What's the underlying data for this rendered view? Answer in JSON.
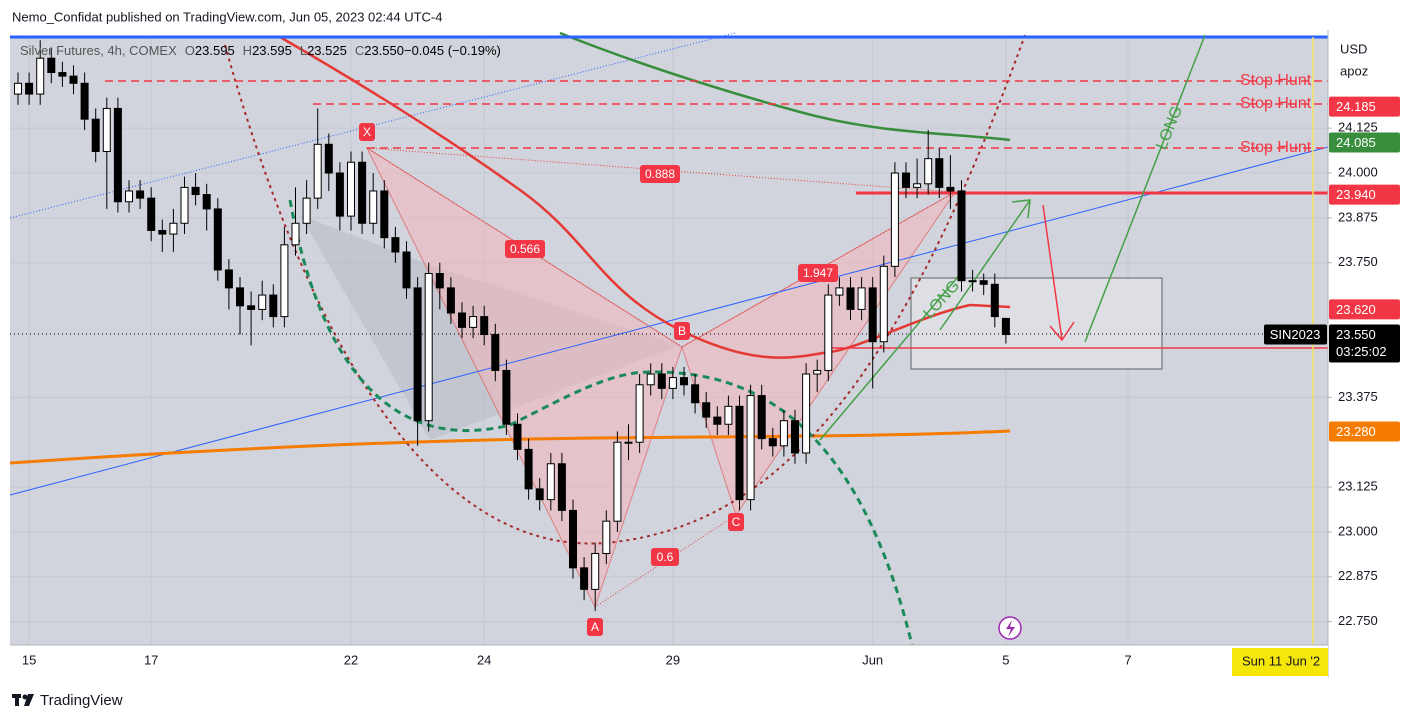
{
  "chart_data": {
    "type": "candlestick",
    "header": "Nemo_Confidat published on TradingView.com, Jun 05, 2023 02:44 UTC-4",
    "symbol": "Silver Futures, 4h, COMEX",
    "ohlc_legend": [
      {
        "key": "O",
        "value": "23.595"
      },
      {
        "key": "H",
        "value": "23.595"
      },
      {
        "key": "L",
        "value": "23.525"
      },
      {
        "key": "C",
        "value": "23.550"
      },
      {
        "key": "",
        "value": "−0.045 (−0.19%)"
      }
    ],
    "currency": "USD",
    "unit": "apoz",
    "categories": [
      null,
      "15",
      null,
      null,
      null,
      null,
      null,
      null,
      null,
      null,
      null,
      null,
      "17",
      null,
      null,
      null,
      null,
      null,
      null,
      null,
      null,
      null,
      null,
      null,
      null,
      null,
      null,
      null,
      null,
      null,
      "22",
      null,
      null,
      null,
      null,
      null,
      null,
      null,
      null,
      null,
      null,
      null,
      "24",
      null,
      null,
      null,
      null,
      null,
      null,
      null,
      null,
      null,
      null,
      null,
      null,
      null,
      null,
      null,
      null,
      "29",
      null,
      null,
      null,
      null,
      null,
      null,
      null,
      null,
      null,
      null,
      null,
      null,
      null,
      null,
      null,
      null,
      null,
      "Jun",
      null,
      null,
      null,
      null,
      null,
      null,
      null,
      null,
      null,
      null,
      null,
      "5",
      null,
      null,
      null,
      null,
      null,
      null,
      null,
      null,
      null,
      null,
      "7",
      null,
      null,
      null,
      null,
      null,
      null,
      null,
      null,
      null,
      null,
      null,
      null,
      null,
      null,
      null,
      null,
      null,
      null
    ],
    "series": [
      {
        "name": "SIN2023",
        "open": [
          24.22,
          24.25,
          24.22,
          24.32,
          24.28,
          24.27,
          24.25,
          24.15,
          24.06,
          24.18,
          23.92,
          23.95,
          23.93,
          23.84,
          23.83,
          23.86,
          23.96,
          23.94,
          23.9,
          23.73,
          23.68,
          23.63,
          23.62,
          23.66,
          23.6,
          23.8,
          23.86,
          23.93,
          24.08,
          24.0,
          23.88,
          24.03,
          23.86,
          23.95,
          23.82,
          23.78,
          23.68,
          23.31,
          23.72,
          23.68,
          23.61,
          23.57,
          23.6,
          23.55,
          23.45,
          23.3,
          23.23,
          23.12,
          23.09,
          23.19,
          23.06,
          22.9,
          22.84,
          22.94,
          23.03,
          23.25,
          23.25,
          23.41,
          23.44,
          23.4,
          23.43,
          23.41,
          23.36,
          23.32,
          23.3,
          23.35,
          23.09,
          23.38,
          23.26,
          23.24,
          23.31,
          23.22,
          23.44,
          23.45,
          23.66,
          23.68,
          23.62,
          23.68,
          23.53,
          23.74,
          24.0,
          23.96,
          23.97,
          24.04,
          23.96,
          23.95,
          23.7,
          23.7,
          23.69,
          23.595,
          null,
          null,
          null,
          null,
          null,
          null,
          null,
          null,
          null,
          null,
          null,
          null,
          null,
          null,
          null,
          null,
          null,
          null,
          null,
          null,
          null,
          null,
          null,
          null,
          null,
          null,
          null,
          null,
          null
        ],
        "high": [
          24.28,
          24.28,
          24.37,
          24.35,
          24.31,
          24.3,
          24.28,
          24.18,
          24.21,
          24.21,
          23.98,
          23.98,
          23.96,
          23.87,
          23.9,
          23.99,
          24.0,
          23.97,
          23.93,
          23.76,
          23.71,
          23.67,
          23.7,
          23.69,
          23.85,
          23.96,
          23.98,
          24.18,
          24.11,
          24.03,
          24.06,
          24.06,
          24.0,
          23.98,
          23.85,
          23.81,
          23.71,
          23.75,
          23.75,
          23.71,
          23.64,
          23.63,
          23.63,
          23.58,
          23.48,
          23.33,
          23.26,
          23.15,
          23.22,
          23.22,
          23.09,
          22.93,
          22.97,
          23.06,
          23.28,
          23.3,
          23.44,
          23.47,
          23.47,
          23.46,
          23.46,
          23.44,
          23.39,
          23.35,
          23.38,
          23.38,
          23.41,
          23.41,
          23.29,
          23.34,
          23.34,
          23.47,
          23.48,
          23.69,
          23.71,
          23.71,
          23.71,
          23.71,
          23.77,
          24.03,
          24.03,
          24.04,
          24.12,
          24.07,
          24.05,
          23.98,
          23.73,
          23.72,
          23.72,
          23.595,
          null,
          null,
          null,
          null,
          null,
          null,
          null,
          null,
          null,
          null,
          null,
          null,
          null,
          null,
          null,
          null,
          null,
          null,
          null,
          null,
          null,
          null,
          null,
          null,
          null,
          null,
          null,
          null,
          null
        ],
        "low": [
          24.19,
          24.19,
          24.19,
          24.25,
          24.24,
          24.22,
          24.12,
          24.03,
          23.9,
          23.89,
          23.89,
          23.9,
          23.81,
          23.78,
          23.78,
          23.83,
          23.91,
          23.84,
          23.7,
          23.62,
          23.55,
          23.52,
          23.59,
          23.57,
          23.57,
          23.77,
          23.83,
          23.9,
          23.95,
          23.84,
          23.84,
          23.83,
          23.83,
          23.79,
          23.75,
          23.65,
          23.24,
          23.28,
          23.62,
          23.58,
          23.54,
          23.54,
          23.52,
          23.42,
          23.27,
          23.2,
          23.09,
          23.06,
          23.06,
          23.03,
          22.87,
          22.81,
          22.78,
          22.91,
          23.0,
          23.2,
          23.22,
          23.38,
          23.37,
          23.37,
          23.38,
          23.33,
          23.29,
          23.27,
          23.27,
          23.06,
          23.06,
          23.23,
          23.21,
          23.21,
          23.19,
          23.19,
          23.39,
          23.42,
          23.63,
          23.59,
          23.59,
          23.4,
          23.5,
          23.71,
          23.93,
          23.93,
          23.94,
          23.93,
          23.9,
          23.67,
          23.67,
          23.66,
          23.57,
          23.525,
          null,
          null,
          null,
          null,
          null,
          null,
          null,
          null,
          null,
          null,
          null,
          null,
          null,
          null,
          null,
          null,
          null,
          null,
          null,
          null,
          null,
          null,
          null,
          null,
          null,
          null,
          null,
          null,
          null
        ],
        "close": [
          24.25,
          24.22,
          24.32,
          24.28,
          24.27,
          24.25,
          24.15,
          24.06,
          24.18,
          23.92,
          23.95,
          23.93,
          23.84,
          23.83,
          23.86,
          23.96,
          23.94,
          23.9,
          23.73,
          23.68,
          23.63,
          23.62,
          23.66,
          23.6,
          23.8,
          23.86,
          23.93,
          24.08,
          24.0,
          23.88,
          24.03,
          23.86,
          23.95,
          23.82,
          23.78,
          23.68,
          23.31,
          23.72,
          23.68,
          23.61,
          23.57,
          23.6,
          23.55,
          23.45,
          23.3,
          23.23,
          23.12,
          23.09,
          23.19,
          23.06,
          22.9,
          22.84,
          22.94,
          23.03,
          23.25,
          23.25,
          23.41,
          23.44,
          23.4,
          23.43,
          23.41,
          23.36,
          23.32,
          23.3,
          23.35,
          23.09,
          23.38,
          23.26,
          23.24,
          23.31,
          23.22,
          23.44,
          23.45,
          23.66,
          23.68,
          23.62,
          23.68,
          23.53,
          23.74,
          24.0,
          23.96,
          23.97,
          24.04,
          23.96,
          23.95,
          23.7,
          23.7,
          23.69,
          23.6,
          23.55,
          null,
          null,
          null,
          null,
          null,
          null,
          null,
          null,
          null,
          null,
          null,
          null,
          null,
          null,
          null,
          null,
          null,
          null,
          null,
          null,
          null,
          null,
          null,
          null,
          null,
          null,
          null,
          null,
          null
        ]
      }
    ],
    "up_color": "#ffffff",
    "down_color": "#000000",
    "ylim": [
      22.685,
      24.379
    ],
    "yticks": [
      {
        "value": 22.75,
        "label": "22.750"
      },
      {
        "value": 22.875,
        "label": "22.875"
      },
      {
        "value": 23.0,
        "label": "23.000"
      },
      {
        "value": 23.125,
        "label": "23.125"
      },
      {
        "value": 23.375,
        "label": "23.375"
      },
      {
        "value": 23.75,
        "label": "23.750"
      },
      {
        "value": 23.875,
        "label": "23.875"
      },
      {
        "value": 24.0,
        "label": "24.000"
      },
      {
        "value": 24.125,
        "label": "24.125"
      }
    ],
    "grid": true,
    "price_labels": [
      {
        "value": 24.185,
        "label": "24.185",
        "color": "#f23645"
      },
      {
        "value": 24.085,
        "label": "24.085",
        "color": "#388e3c"
      },
      {
        "value": 23.94,
        "label": "23.940",
        "color": "#f23645"
      },
      {
        "value": 23.62,
        "label": "23.620",
        "color": "#f23645"
      },
      {
        "value": 23.28,
        "label": "23.280",
        "color": "#f57c00"
      },
      {
        "value": 23.55,
        "label": "23.550",
        "color": "#000000"
      }
    ],
    "countdown": "03:25:02",
    "cursor_date": "Sun 11 Jun '2",
    "annotations": {
      "stop_hunt": [
        "Stop Hunt",
        "Stop Hunt",
        "Stop Hunt"
      ],
      "long": [
        "LONG",
        "LONG"
      ],
      "points": [
        "X",
        "A",
        "B",
        "C"
      ],
      "ratios": [
        0.888,
        0.566,
        1.947,
        0.6
      ]
    },
    "footer": "TradingView"
  }
}
